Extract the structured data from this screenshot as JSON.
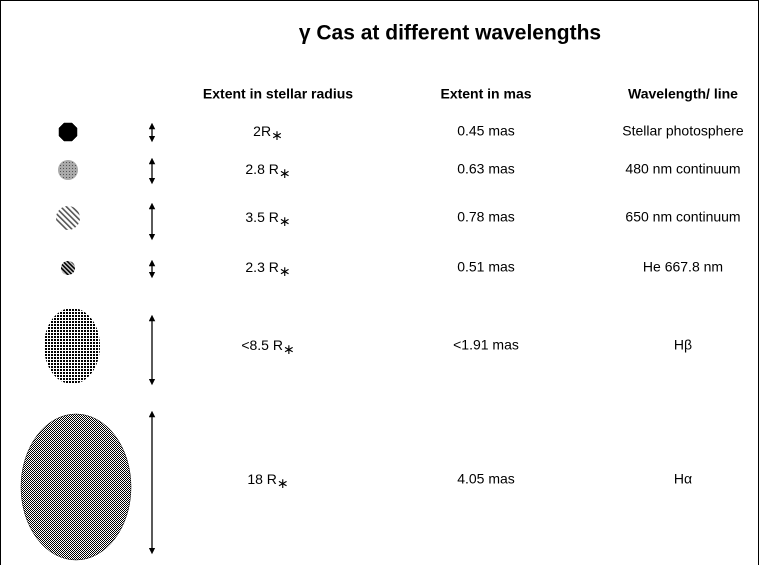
{
  "title": "γ Cas at different wavelengths",
  "table": {
    "headers": [
      "Extent  in stellar radius",
      "Extent  in mas",
      "Wavelength/ line"
    ],
    "rows": [
      {
        "radius": {
          "text": "2R",
          "sub": "∗"
        },
        "mas": "0.45 mas",
        "line": "Stellar photosphere"
      },
      {
        "radius": {
          "text": "2.8 R",
          "sub": "∗"
        },
        "mas": "0.63 mas",
        "line": "480 nm continuum"
      },
      {
        "radius": {
          "text": "3.5 R",
          "sub": "∗"
        },
        "mas": "0.78 mas",
        "line": "650 nm continuum"
      },
      {
        "radius": {
          "text": "2.3 R",
          "sub": "∗"
        },
        "mas": "0.51 mas",
        "line": "He 667.8 nm"
      },
      {
        "radius": {
          "text": "<8.5 R",
          "sub": "∗"
        },
        "mas": "<1.91 mas",
        "line": "Hβ"
      },
      {
        "radius": {
          "text": "18 R",
          "sub": "∗"
        },
        "mas": "4.05 mas",
        "line": "Hα"
      }
    ]
  }
}
